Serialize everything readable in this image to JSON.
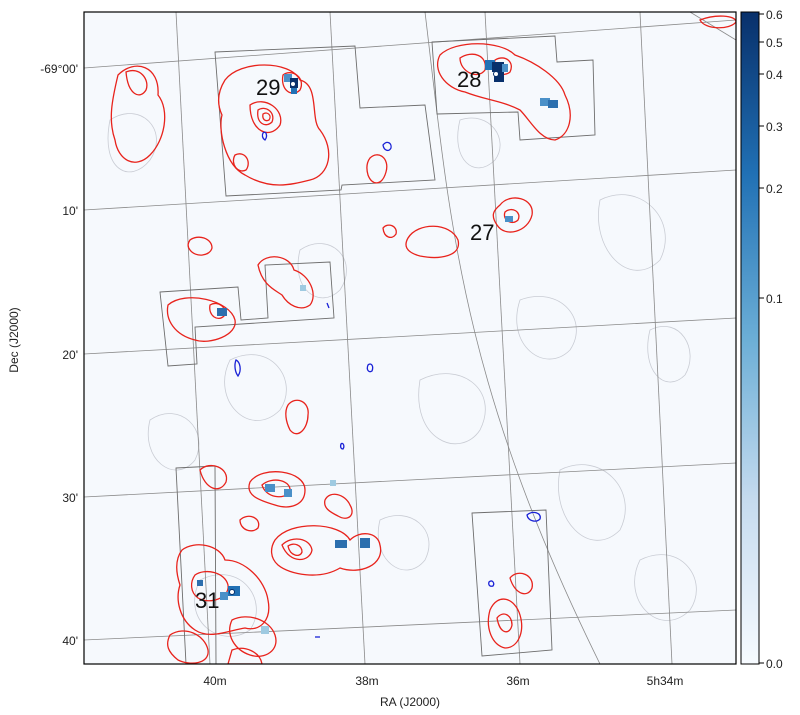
{
  "map": {
    "x_axis": {
      "title": "RA (J2000)",
      "ticks": [
        "40m",
        "38m",
        "36m",
        "5h34m"
      ]
    },
    "y_axis": {
      "title": "Dec (J2000)",
      "ticks": [
        "-69°00'",
        "10'",
        "20'",
        "30'",
        "40'"
      ]
    },
    "region_labels": [
      "29",
      "28",
      "27",
      "31"
    ],
    "colorbar": {
      "ticks": [
        "0.6",
        "0.5",
        "0.4",
        "0.3",
        "0.2",
        "0.1",
        "0.0"
      ],
      "scale": "sqrt",
      "range": [
        0.0,
        0.6
      ],
      "colormap": "Blues"
    },
    "colors": {
      "contour_red": "#e8231c",
      "contour_blue": "#1a22d6",
      "background_contour": "#c9ccd4",
      "grid": "#8a8a8a",
      "field_outline": "#6e6e6e",
      "background": "#f6f9fd"
    }
  }
}
